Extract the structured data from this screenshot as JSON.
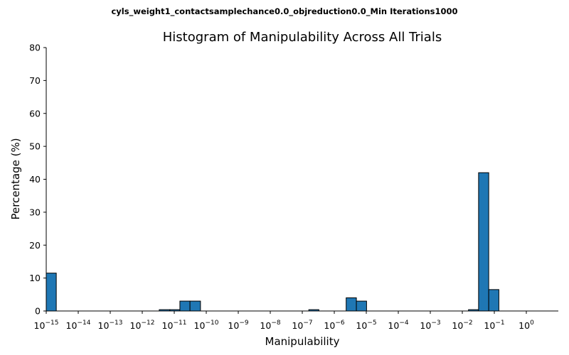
{
  "chart_data": {
    "type": "bar",
    "suptitle": "cyls_weight1_contactsamplechance0.0_objreduction0.0_Min Iterations1000",
    "title": "Histogram of Manipulability Across All Trials",
    "xlabel": "Manipulability",
    "ylabel": "Percentage (%)",
    "x_scale": "log",
    "xlim": [
      1e-15,
      10
    ],
    "ylim": [
      0,
      80
    ],
    "grid": false,
    "y_ticks": [
      "0",
      "10",
      "20",
      "30",
      "40",
      "50",
      "60",
      "70",
      "80"
    ],
    "x_ticks": [
      {
        "base": "10",
        "exp": "−15"
      },
      {
        "base": "10",
        "exp": "−14"
      },
      {
        "base": "10",
        "exp": "−13"
      },
      {
        "base": "10",
        "exp": "−12"
      },
      {
        "base": "10",
        "exp": "−11"
      },
      {
        "base": "10",
        "exp": "−10"
      },
      {
        "base": "10",
        "exp": "−9"
      },
      {
        "base": "10",
        "exp": "−8"
      },
      {
        "base": "10",
        "exp": "−7"
      },
      {
        "base": "10",
        "exp": "−6"
      },
      {
        "base": "10",
        "exp": "−5"
      },
      {
        "base": "10",
        "exp": "−4"
      },
      {
        "base": "10",
        "exp": "−3"
      },
      {
        "base": "10",
        "exp": "−2"
      },
      {
        "base": "10",
        "exp": "−1"
      },
      {
        "base": "10",
        "exp": "0"
      }
    ],
    "bins": [
      {
        "x0": 1e-15,
        "x1": 2.06e-15,
        "value": 11.5
      },
      {
        "x0": 3.4e-12,
        "x1": 7.3e-12,
        "value": 0.4
      },
      {
        "x0": 7.3e-12,
        "x1": 1.5e-11,
        "value": 0.4
      },
      {
        "x0": 1.5e-11,
        "x1": 3.1e-11,
        "value": 3.0
      },
      {
        "x0": 3.1e-11,
        "x1": 6.6e-11,
        "value": 3.0
      },
      {
        "x0": 1.6e-07,
        "x1": 3.3e-07,
        "value": 0.4
      },
      {
        "x0": 2.35e-06,
        "x1": 4.9e-06,
        "value": 4.0
      },
      {
        "x0": 4.9e-06,
        "x1": 1.02e-05,
        "value": 3.0
      },
      {
        "x0": 0.0156,
        "x1": 0.0322,
        "value": 0.4
      },
      {
        "x0": 0.0322,
        "x1": 0.0669,
        "value": 42.0
      },
      {
        "x0": 0.0669,
        "x1": 0.1388,
        "value": 6.5
      }
    ]
  }
}
